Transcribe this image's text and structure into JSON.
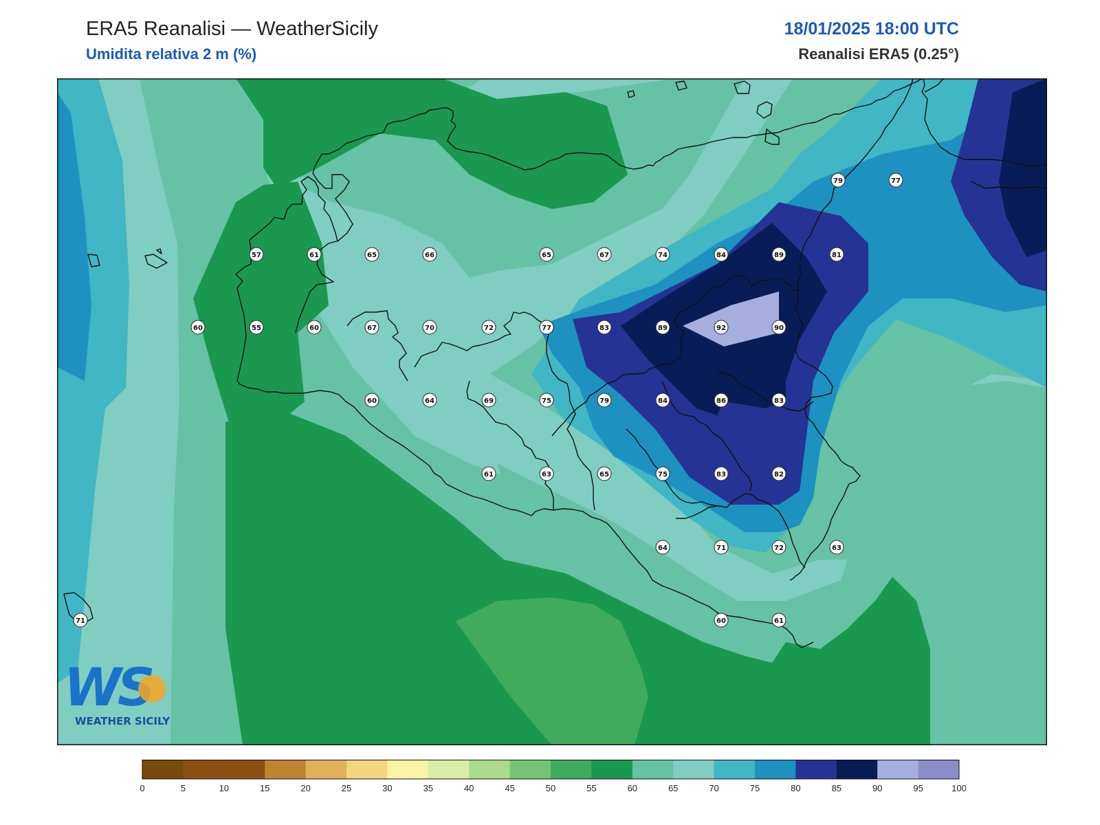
{
  "header": {
    "title": "ERA5 Reanalisi — WeatherSicily",
    "subtitle": "Umidita relativa 2 m (%)",
    "datetime": "18/01/2025 18:00 UTC",
    "source": "Reanalisi ERA5 (0.25°)"
  },
  "logo": {
    "letters": "WS",
    "text": "WEATHER SICILY",
    "color_main": "#1a73c8",
    "color_accent": "#f5a623"
  },
  "colorbar": {
    "ticks": [
      "0",
      "5",
      "10",
      "15",
      "20",
      "25",
      "30",
      "35",
      "40",
      "45",
      "50",
      "55",
      "60",
      "65",
      "70",
      "75",
      "80",
      "85",
      "90",
      "95",
      "100"
    ],
    "colors": [
      "#7a4a0c",
      "#8c4f12",
      "#8c4f12",
      "#c0822e",
      "#e0b05a",
      "#f2d57c",
      "#f7f4a6",
      "#d9eea4",
      "#aadc8c",
      "#74c476",
      "#41ab5d",
      "#1a9850",
      "#66c2a4",
      "#80cdc1",
      "#41b6c4",
      "#1d91c0",
      "#253494",
      "#081d58",
      "#a6aee0",
      "#8c8cc8"
    ]
  },
  "stations": [
    {
      "value": "79"
    },
    {
      "value": "77"
    },
    {
      "value": "57"
    },
    {
      "value": "61"
    },
    {
      "value": "65"
    },
    {
      "value": "66"
    },
    {
      "value": "65"
    },
    {
      "value": "67"
    },
    {
      "value": "74"
    },
    {
      "value": "84"
    },
    {
      "value": "89"
    },
    {
      "value": "81"
    },
    {
      "value": "60"
    },
    {
      "value": "55"
    },
    {
      "value": "60"
    },
    {
      "value": "67"
    },
    {
      "value": "70"
    },
    {
      "value": "72"
    },
    {
      "value": "77"
    },
    {
      "value": "83"
    },
    {
      "value": "89"
    },
    {
      "value": "92"
    },
    {
      "value": "90"
    },
    {
      "value": "60"
    },
    {
      "value": "64"
    },
    {
      "value": "69"
    },
    {
      "value": "75"
    },
    {
      "value": "79"
    },
    {
      "value": "84"
    },
    {
      "value": "86"
    },
    {
      "value": "83"
    },
    {
      "value": "61"
    },
    {
      "value": "63"
    },
    {
      "value": "65"
    },
    {
      "value": "75"
    },
    {
      "value": "83"
    },
    {
      "value": "82"
    },
    {
      "value": "64"
    },
    {
      "value": "71"
    },
    {
      "value": "72"
    },
    {
      "value": "63"
    },
    {
      "value": "60"
    },
    {
      "value": "61"
    },
    {
      "value": "71"
    }
  ]
}
